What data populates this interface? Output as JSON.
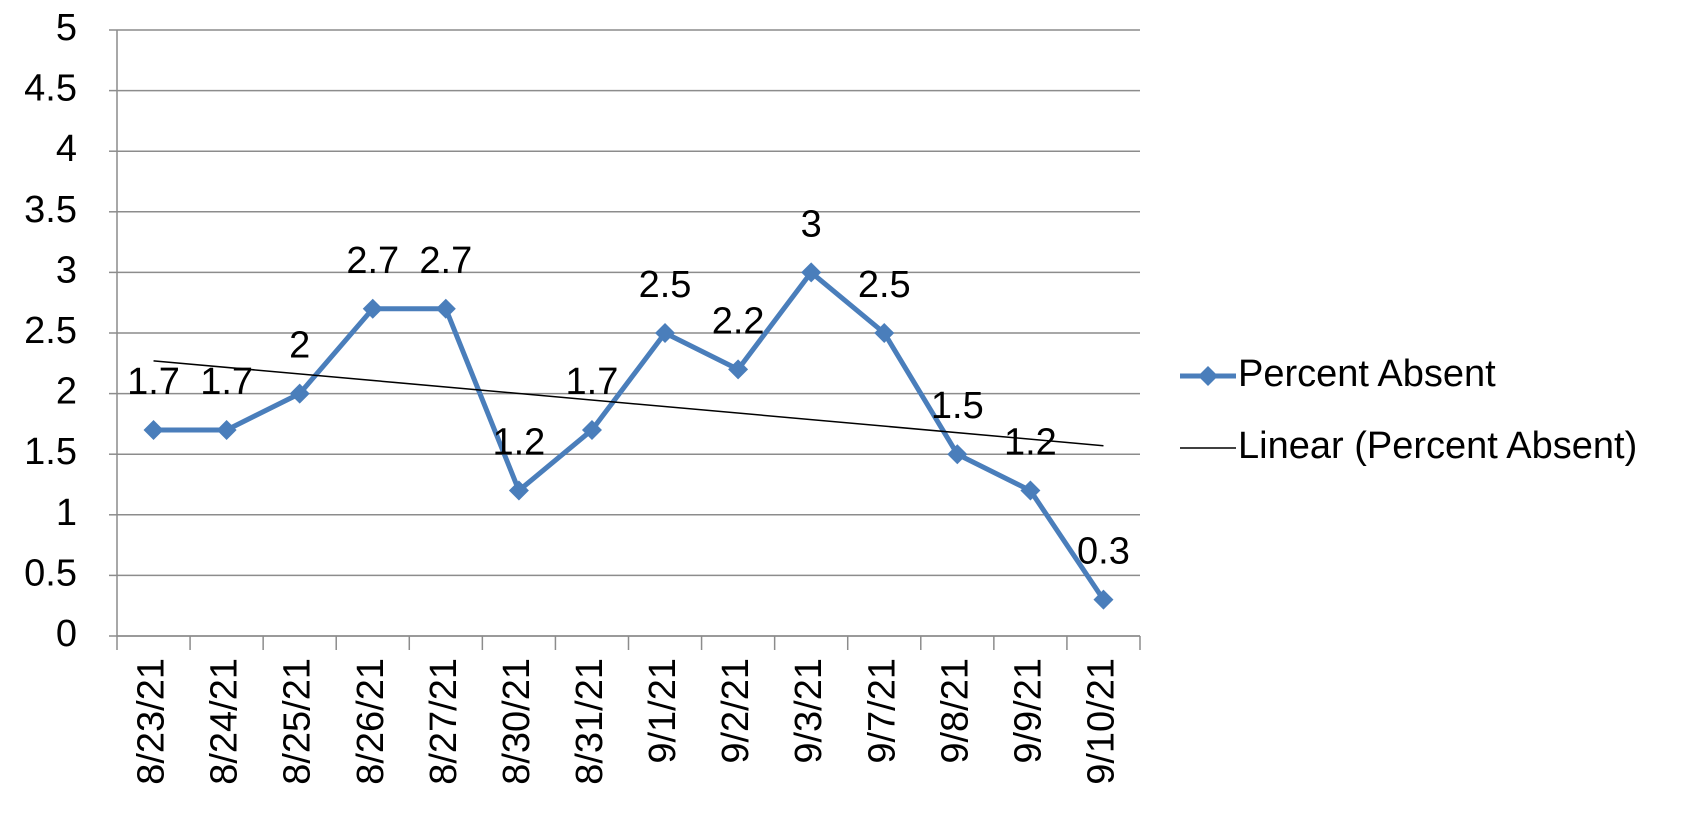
{
  "chart_data": {
    "type": "line",
    "categories": [
      "8/23/21",
      "8/24/21",
      "8/25/21",
      "8/26/21",
      "8/27/21",
      "8/30/21",
      "8/31/21",
      "9/1/21",
      "9/2/21",
      "9/3/21",
      "9/7/21",
      "9/8/21",
      "9/9/21",
      "9/10/21"
    ],
    "series": [
      {
        "name": "Percent Absent",
        "color": "#4a7ebb",
        "values": [
          1.7,
          1.7,
          2,
          2.7,
          2.7,
          1.2,
          1.7,
          2.5,
          2.2,
          3,
          2.5,
          1.5,
          1.2,
          0.3
        ]
      }
    ],
    "trendline": {
      "name": "Linear (Percent Absent)",
      "color": "#000000",
      "values": [
        2.27,
        1.57
      ]
    },
    "ylim": [
      0,
      5
    ],
    "yticks": [
      0,
      0.5,
      1,
      1.5,
      2,
      2.5,
      3,
      3.5,
      4,
      4.5,
      5
    ],
    "grid": true,
    "legend": "right",
    "data_labels": true
  }
}
